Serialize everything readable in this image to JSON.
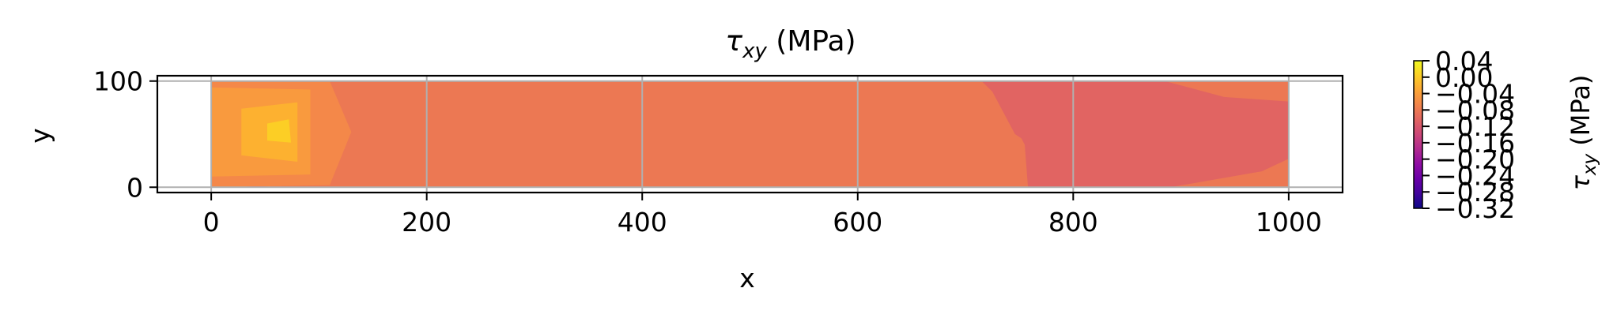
{
  "chart_data": {
    "type": "heatmap",
    "title_main": "τ",
    "title_sub": "xy",
    "title_suffix": " (MPa)",
    "xlabel": "x",
    "ylabel": "y",
    "xlim": [
      -50,
      1050
    ],
    "ylim": [
      -5,
      105
    ],
    "xticks": [
      0,
      200,
      400,
      600,
      800,
      1000
    ],
    "xtick_labels": [
      "0",
      "200",
      "400",
      "600",
      "800",
      "1000"
    ],
    "yticks": [
      0,
      100
    ],
    "ytick_labels": [
      "0",
      "100"
    ],
    "grid": true,
    "colormap": "plasma",
    "background_field": {
      "value": -0.04,
      "color": "#ec7853"
    },
    "regions": [
      {
        "value": -0.08,
        "color": "#e16462",
        "polygon": [
          [
            715,
            100
          ],
          [
            885,
            100
          ],
          [
            940,
            85
          ],
          [
            1010,
            80
          ],
          [
            1045,
            48
          ],
          [
            975,
            15
          ],
          [
            890,
            0
          ],
          [
            758,
            0
          ],
          [
            755,
            40
          ],
          [
            752,
            46
          ],
          [
            746,
            50
          ],
          [
            725,
            90
          ]
        ]
      },
      {
        "value": -0.0,
        "color": "#f48849",
        "polygon": [
          [
            0,
            100
          ],
          [
            110,
            100
          ],
          [
            130,
            52
          ],
          [
            110,
            2
          ],
          [
            0,
            0
          ]
        ]
      },
      {
        "value": 0.0,
        "color": "#f99a3e",
        "polygon": [
          [
            0,
            94
          ],
          [
            92,
            92
          ],
          [
            92,
            12
          ],
          [
            0,
            10
          ]
        ]
      },
      {
        "value": 0.02,
        "color": "#fdb130",
        "polygon": [
          [
            28,
            74
          ],
          [
            80,
            80
          ],
          [
            80,
            24
          ],
          [
            28,
            30
          ]
        ]
      },
      {
        "value": 0.04,
        "color": "#fcce25",
        "polygon": [
          [
            52,
            60
          ],
          [
            72,
            64
          ],
          [
            74,
            42
          ],
          [
            52,
            44
          ]
        ]
      }
    ],
    "left_gradient": {
      "min_value": -0.32,
      "max_value": 0.0,
      "colors": [
        "#0d0887",
        "#5302a3",
        "#8b0aa5",
        "#b83289",
        "#db5c68",
        "#f48849"
      ]
    },
    "colorbar": {
      "label_main": "τ",
      "label_sub": "xy",
      "label_suffix": " (MPa)",
      "range": [
        -0.32,
        0.04
      ],
      "ticks": [
        0.04,
        0.0,
        -0.04,
        -0.08,
        -0.12,
        -0.16,
        -0.2,
        -0.24,
        -0.28,
        -0.32
      ],
      "tick_labels": [
        "0.04",
        "0.00",
        "−0.04",
        "−0.08",
        "−0.12",
        "−0.16",
        "−0.20",
        "−0.24",
        "−0.28",
        "−0.32"
      ],
      "colors": [
        "#0d0887",
        "#41049d",
        "#6a00a8",
        "#8f0da4",
        "#b12a90",
        "#cc4778",
        "#e16462",
        "#f2844b",
        "#fca636",
        "#fcce25",
        "#f0f921"
      ]
    }
  }
}
